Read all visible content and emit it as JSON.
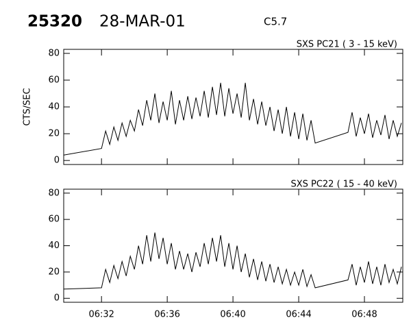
{
  "header": {
    "event": "25320",
    "date": "28-MAR-01",
    "class": "C5.7"
  },
  "chart_data": [
    {
      "type": "line",
      "subtitle": "SXS PC21  (  3 - 15 keV)",
      "ylabel": "CTS/SEC",
      "xlim": [
        "06:29:42",
        "06:50:20"
      ],
      "xticks": [
        "06:32",
        "06:36",
        "06:40",
        "06:44",
        "06:48"
      ],
      "ylim": [
        -3,
        83
      ],
      "yticks": [
        0,
        20,
        40,
        60,
        80
      ],
      "series": [
        {
          "color": "#000000",
          "x": [
            "06:29:42",
            "06:32:00",
            "06:32:15",
            "06:32:30",
            "06:32:45",
            "06:33:00",
            "06:33:15",
            "06:33:30",
            "06:33:45",
            "06:34:00",
            "06:34:15",
            "06:34:30",
            "06:34:45",
            "06:35:00",
            "06:35:15",
            "06:35:30",
            "06:35:45",
            "06:36:00",
            "06:36:15",
            "06:36:30",
            "06:36:45",
            "06:37:00",
            "06:37:15",
            "06:37:30",
            "06:37:45",
            "06:38:00",
            "06:38:15",
            "06:38:30",
            "06:38:45",
            "06:39:00",
            "06:39:15",
            "06:39:30",
            "06:39:45",
            "06:40:00",
            "06:40:15",
            "06:40:30",
            "06:40:45",
            "06:41:00",
            "06:41:15",
            "06:41:30",
            "06:41:45",
            "06:42:00",
            "06:42:15",
            "06:42:30",
            "06:42:45",
            "06:43:00",
            "06:43:15",
            "06:43:30",
            "06:43:45",
            "06:44:00",
            "06:44:15",
            "06:44:30",
            "06:44:45",
            "06:45:00",
            "06:47:00",
            "06:47:15",
            "06:47:30",
            "06:47:45",
            "06:48:00",
            "06:48:15",
            "06:48:30",
            "06:48:45",
            "06:49:00",
            "06:49:15",
            "06:49:30",
            "06:49:45",
            "06:50:00",
            "06:50:15"
          ],
          "values": [
            4,
            9,
            22,
            12,
            25,
            15,
            28,
            18,
            30,
            22,
            38,
            26,
            45,
            30,
            50,
            28,
            44,
            30,
            52,
            27,
            45,
            30,
            48,
            31,
            47,
            33,
            52,
            32,
            55,
            34,
            58,
            33,
            54,
            35,
            50,
            32,
            58,
            30,
            46,
            27,
            44,
            26,
            40,
            22,
            38,
            20,
            40,
            18,
            36,
            16,
            35,
            15,
            30,
            13,
            21,
            36,
            18,
            32,
            20,
            35,
            17,
            30,
            19,
            34,
            16,
            30,
            18,
            28
          ]
        }
      ]
    },
    {
      "type": "line",
      "subtitle": "SXS PC22  ( 15 - 40 keV)",
      "xlim": [
        "06:29:42",
        "06:50:20"
      ],
      "xticks": [
        "06:32",
        "06:36",
        "06:40",
        "06:44",
        "06:48"
      ],
      "ylim": [
        -3,
        83
      ],
      "yticks": [
        0,
        20,
        40,
        60,
        80
      ],
      "series": [
        {
          "color": "#000000",
          "x": [
            "06:29:42",
            "06:32:00",
            "06:32:15",
            "06:32:30",
            "06:32:45",
            "06:33:00",
            "06:33:15",
            "06:33:30",
            "06:33:45",
            "06:34:00",
            "06:34:15",
            "06:34:30",
            "06:34:45",
            "06:35:00",
            "06:35:15",
            "06:35:30",
            "06:35:45",
            "06:36:00",
            "06:36:15",
            "06:36:30",
            "06:36:45",
            "06:37:00",
            "06:37:15",
            "06:37:30",
            "06:37:45",
            "06:38:00",
            "06:38:15",
            "06:38:30",
            "06:38:45",
            "06:39:00",
            "06:39:15",
            "06:39:30",
            "06:39:45",
            "06:40:00",
            "06:40:15",
            "06:40:30",
            "06:40:45",
            "06:41:00",
            "06:41:15",
            "06:41:30",
            "06:41:45",
            "06:42:00",
            "06:42:15",
            "06:42:30",
            "06:42:45",
            "06:43:00",
            "06:43:15",
            "06:43:30",
            "06:43:45",
            "06:44:00",
            "06:44:15",
            "06:44:30",
            "06:44:45",
            "06:45:00",
            "06:47:00",
            "06:47:15",
            "06:47:30",
            "06:47:45",
            "06:48:00",
            "06:48:15",
            "06:48:30",
            "06:48:45",
            "06:49:00",
            "06:49:15",
            "06:49:30",
            "06:49:45",
            "06:50:00",
            "06:50:15"
          ],
          "values": [
            7,
            8,
            22,
            12,
            25,
            15,
            28,
            17,
            32,
            22,
            40,
            26,
            48,
            28,
            50,
            30,
            46,
            26,
            42,
            22,
            36,
            22,
            34,
            20,
            35,
            24,
            42,
            26,
            46,
            28,
            48,
            24,
            42,
            22,
            40,
            20,
            34,
            16,
            30,
            14,
            28,
            13,
            26,
            12,
            24,
            11,
            22,
            10,
            20,
            10,
            22,
            9,
            18,
            8,
            14,
            26,
            10,
            24,
            12,
            28,
            11,
            24,
            10,
            26,
            12,
            22,
            11,
            24
          ]
        }
      ]
    }
  ]
}
